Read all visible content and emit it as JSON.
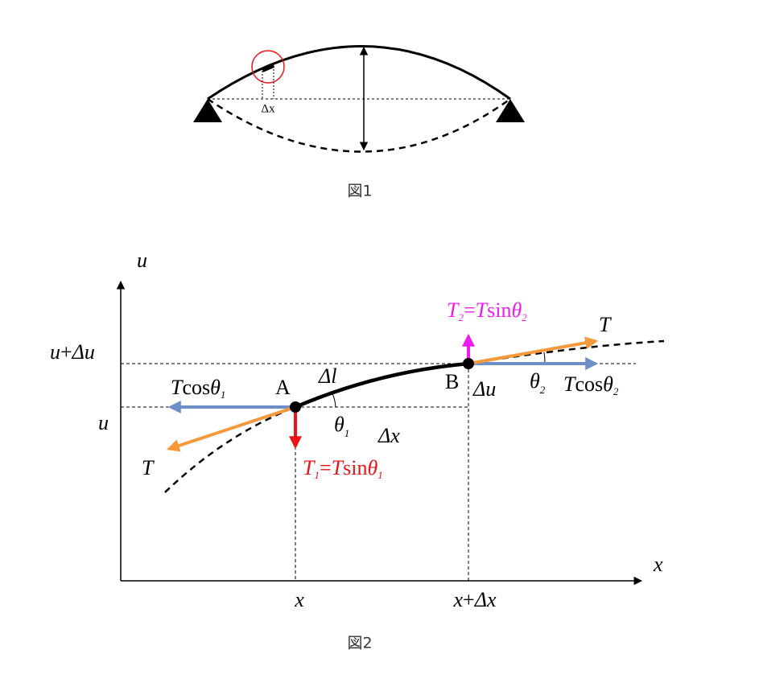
{
  "figure1": {
    "delta_x": "Δx",
    "caption": "図1"
  },
  "figure2": {
    "axis_u": "u",
    "axis_x": "x",
    "u_plus_du": [
      "u",
      "+",
      "Δu"
    ],
    "u": "u",
    "x": "x",
    "x_plus_dx": [
      "x",
      "+",
      "Δx"
    ],
    "point_a": "A",
    "point_b": "B",
    "delta_l": "Δl",
    "delta_x": "Δx",
    "delta_u": "Δu",
    "theta1": [
      "θ",
      "1"
    ],
    "theta2": [
      "θ",
      "2"
    ],
    "t_cos_theta1": [
      "T",
      "cos",
      "θ",
      "1"
    ],
    "t_cos_theta2": [
      "T",
      "cos",
      "θ",
      "2"
    ],
    "t_left": "T",
    "t_right": "T",
    "t1_sin": [
      "T",
      "1",
      "=",
      "T",
      "sin",
      "θ",
      "1"
    ],
    "t2_sin": [
      "T",
      "2",
      "=",
      "T",
      "sin",
      "θ",
      "2"
    ],
    "caption": "図2"
  }
}
